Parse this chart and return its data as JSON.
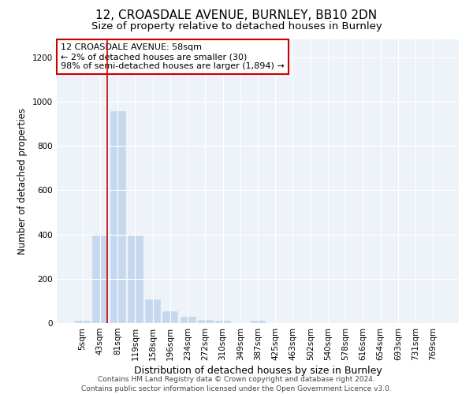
{
  "title1": "12, CROASDALE AVENUE, BURNLEY, BB10 2DN",
  "title2": "Size of property relative to detached houses in Burnley",
  "xlabel": "Distribution of detached houses by size in Burnley",
  "ylabel": "Number of detached properties",
  "categories": [
    "5sqm",
    "43sqm",
    "81sqm",
    "119sqm",
    "158sqm",
    "196sqm",
    "234sqm",
    "272sqm",
    "310sqm",
    "349sqm",
    "387sqm",
    "425sqm",
    "463sqm",
    "502sqm",
    "540sqm",
    "578sqm",
    "616sqm",
    "654sqm",
    "693sqm",
    "731sqm",
    "769sqm"
  ],
  "values": [
    12,
    397,
    955,
    393,
    105,
    55,
    28,
    15,
    10,
    0,
    12,
    0,
    0,
    0,
    0,
    0,
    0,
    0,
    0,
    0,
    0
  ],
  "bar_color": "#c5d8ee",
  "bar_edge_color": "#c5d8ee",
  "vline_x": 1.42,
  "vline_color": "#cc0000",
  "annotation_text": "12 CROASDALE AVENUE: 58sqm\n← 2% of detached houses are smaller (30)\n98% of semi-detached houses are larger (1,894) →",
  "annotation_box_color": "#ffffff",
  "annotation_box_edge": "#cc0000",
  "ylim": [
    0,
    1280
  ],
  "yticks": [
    0,
    200,
    400,
    600,
    800,
    1000,
    1200
  ],
  "plot_bg_color": "#eef2f9",
  "footer": "Contains HM Land Registry data © Crown copyright and database right 2024.\nContains public sector information licensed under the Open Government Licence v3.0.",
  "title1_fontsize": 11,
  "title2_fontsize": 9.5,
  "xlabel_fontsize": 9,
  "ylabel_fontsize": 8.5,
  "tick_fontsize": 7.5,
  "annotation_fontsize": 8,
  "footer_fontsize": 6.5
}
